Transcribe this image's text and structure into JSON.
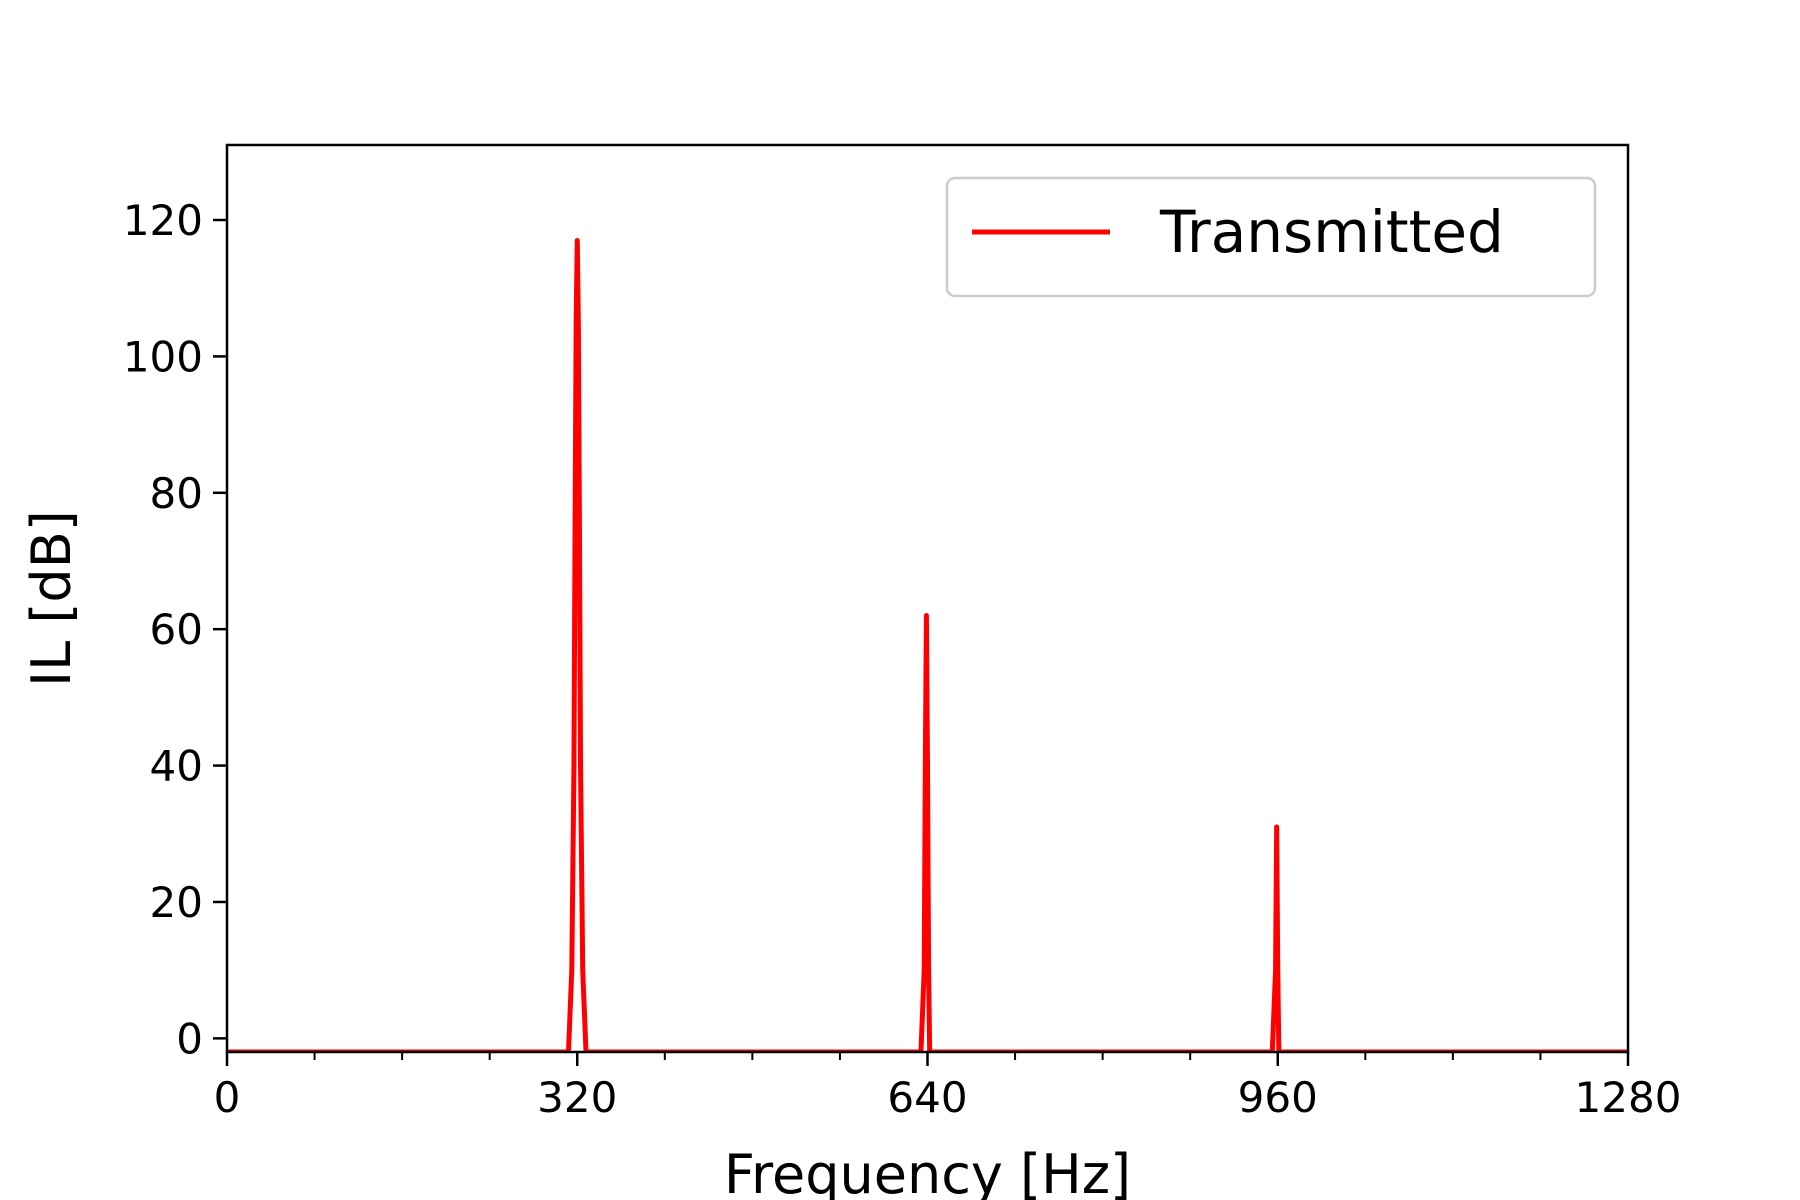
{
  "chart_data": {
    "type": "line",
    "xlabel": "Frequency [Hz]",
    "ylabel": "IL [dB]",
    "xlim": [
      0,
      1280
    ],
    "ylim": [
      -2,
      131
    ],
    "x_ticks": [
      0,
      320,
      640,
      960,
      1280
    ],
    "x_minor_ticks": [
      80,
      160,
      240,
      400,
      480,
      560,
      720,
      800,
      880,
      1040,
      1120,
      1200
    ],
    "y_ticks": [
      0,
      20,
      40,
      60,
      80,
      100,
      120
    ],
    "grid": false,
    "legend_position": "upper right",
    "series": [
      {
        "name": "Transmitted",
        "color": "#ff0000",
        "x": [
          0,
          312,
          315,
          317,
          318,
          319,
          320,
          321,
          322,
          323,
          325,
          328,
          634,
          637,
          638,
          639,
          640,
          641,
          642,
          643,
          646,
          955,
          958,
          959,
          960,
          961,
          962,
          965,
          1280
        ],
        "y": [
          -2,
          -2,
          10,
          40,
          75,
          105,
          117,
          105,
          75,
          40,
          10,
          -2,
          -2,
          10,
          40,
          62,
          40,
          10,
          -2,
          -2,
          -2,
          -2,
          10,
          31,
          10,
          -2,
          -2,
          -2,
          -2
        ]
      }
    ]
  }
}
